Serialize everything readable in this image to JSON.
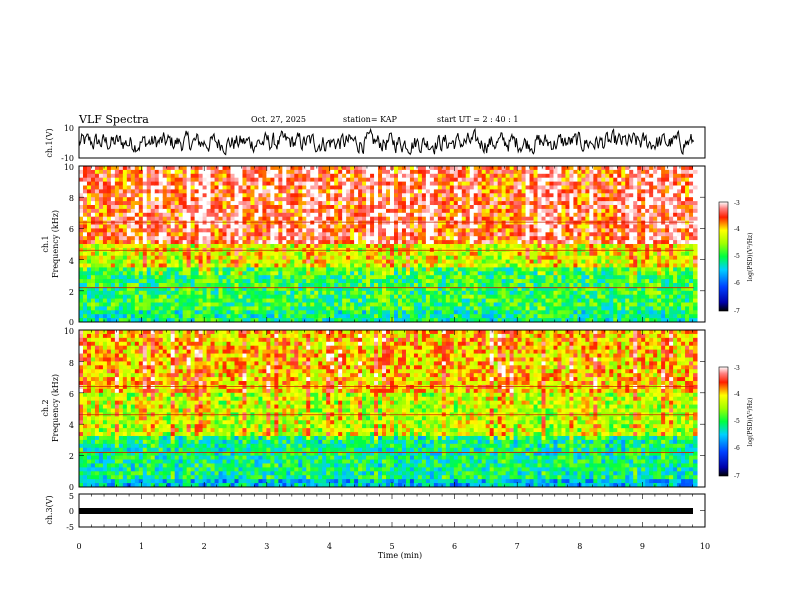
{
  "header": {
    "title": "VLF Spectra",
    "date": "Oct. 27, 2025",
    "station": "station= KAP",
    "start_ut": "start  UT =   2 : 40 : 1"
  },
  "chart_data": [
    {
      "type": "line",
      "panel": "ch1_waveform",
      "ylabel": "ch.1(V)",
      "ylim": [
        -10,
        10
      ],
      "y_ticks": [
        "10",
        "-10"
      ],
      "x_range_min": [
        0,
        9.82
      ],
      "series": [
        {
          "name": "ch.1 voltage",
          "description": "noisy waveform oscillating between about -8 and 8 V"
        }
      ]
    },
    {
      "type": "heatmap",
      "panel": "ch1_spectrogram",
      "title": "ch.1",
      "ylabel": "Frequency (kHz)",
      "ylim": [
        0,
        10
      ],
      "y_ticks": [
        "0",
        "2",
        "4",
        "6",
        "8",
        "10"
      ],
      "x_range_min": [
        0,
        9.82
      ],
      "bands": [
        {
          "freq_khz": [
            0,
            0.8
          ],
          "level": -5.2
        },
        {
          "freq_khz": [
            0.8,
            3.6
          ],
          "level": -5.0
        },
        {
          "freq_khz": [
            3.6,
            5.0
          ],
          "level": -4.4
        },
        {
          "freq_khz": [
            5.0,
            10.0
          ],
          "level": -3.6
        }
      ],
      "colorbar": {
        "label": "log(PSD)(V²/Hz)",
        "range": [
          -7,
          -3
        ],
        "ticks": [
          "-3",
          "-4",
          "-5",
          "-6",
          "-7"
        ]
      }
    },
    {
      "type": "heatmap",
      "panel": "ch2_spectrogram",
      "title": "ch.2",
      "ylabel": "Frequency (kHz)",
      "ylim": [
        0,
        10
      ],
      "y_ticks": [
        "0",
        "2",
        "4",
        "6",
        "8",
        "10"
      ],
      "x_range_min": [
        0,
        9.82
      ],
      "bands": [
        {
          "freq_khz": [
            0,
            0.5
          ],
          "level": -5.6
        },
        {
          "freq_khz": [
            0.5,
            3.2
          ],
          "level": -5.2
        },
        {
          "freq_khz": [
            3.2,
            6.0
          ],
          "level": -4.5
        },
        {
          "freq_khz": [
            6.0,
            10.0
          ],
          "level": -4.1
        }
      ],
      "colorbar": {
        "label": "log(PSD)(V²/Hz)",
        "range": [
          -7,
          -3
        ],
        "ticks": [
          "-3",
          "-4",
          "-5",
          "-6",
          "-7"
        ]
      }
    },
    {
      "type": "line",
      "panel": "ch3_waveform",
      "ylabel": "ch.3(V)",
      "ylim": [
        -5,
        5
      ],
      "y_ticks": [
        "5",
        "0",
        "-5"
      ],
      "x_range_min": [
        0,
        9.82
      ],
      "series": [
        {
          "name": "ch.3 voltage",
          "description": "thick flat band near -1 V"
        }
      ],
      "xlabel": "Time (min)",
      "xlim": [
        0,
        10
      ],
      "x_ticks": [
        "0",
        "1",
        "2",
        "3",
        "4",
        "5",
        "6",
        "7",
        "8",
        "9",
        "10"
      ]
    }
  ]
}
